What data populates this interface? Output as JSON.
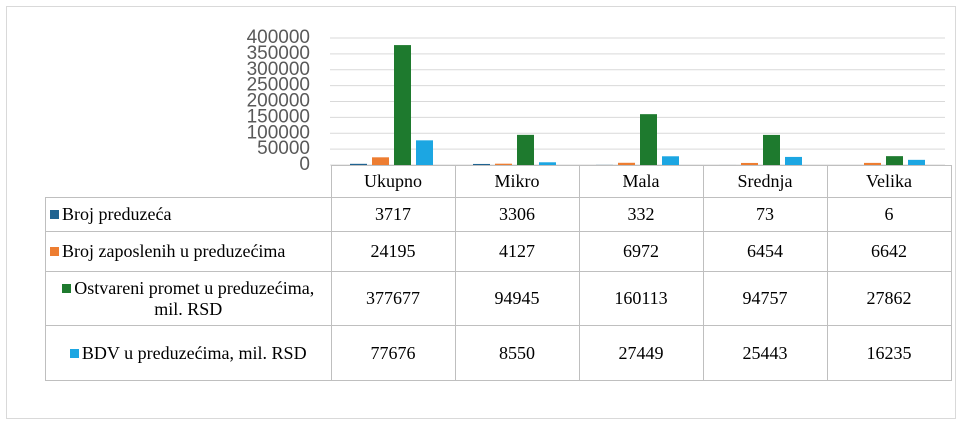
{
  "chart_data": {
    "type": "bar",
    "categories": [
      "Ukupno",
      "Mikro",
      "Mala",
      "Srednja",
      "Velika"
    ],
    "series": [
      {
        "name": "Broj preduzeća",
        "color": "#1f6391",
        "values": [
          3717,
          3306,
          332,
          73,
          6
        ]
      },
      {
        "name": "Broj zaposlenih u preduzećima",
        "color": "#ed7d31",
        "values": [
          24195,
          4127,
          6972,
          6454,
          6642
        ]
      },
      {
        "name": "Ostvareni promet u preduzećima, mil. RSD",
        "color": "#1e7a2e",
        "values": [
          377677,
          94945,
          160113,
          94757,
          27862
        ]
      },
      {
        "name": "BDV u preduzećima, mil. RSD",
        "color": "#1ca6e2",
        "values": [
          77676,
          8550,
          27449,
          25443,
          16235
        ]
      }
    ],
    "ylim": [
      0,
      400000
    ],
    "yticks": [
      0,
      50000,
      100000,
      150000,
      200000,
      250000,
      300000,
      350000,
      400000
    ],
    "grid": true
  }
}
